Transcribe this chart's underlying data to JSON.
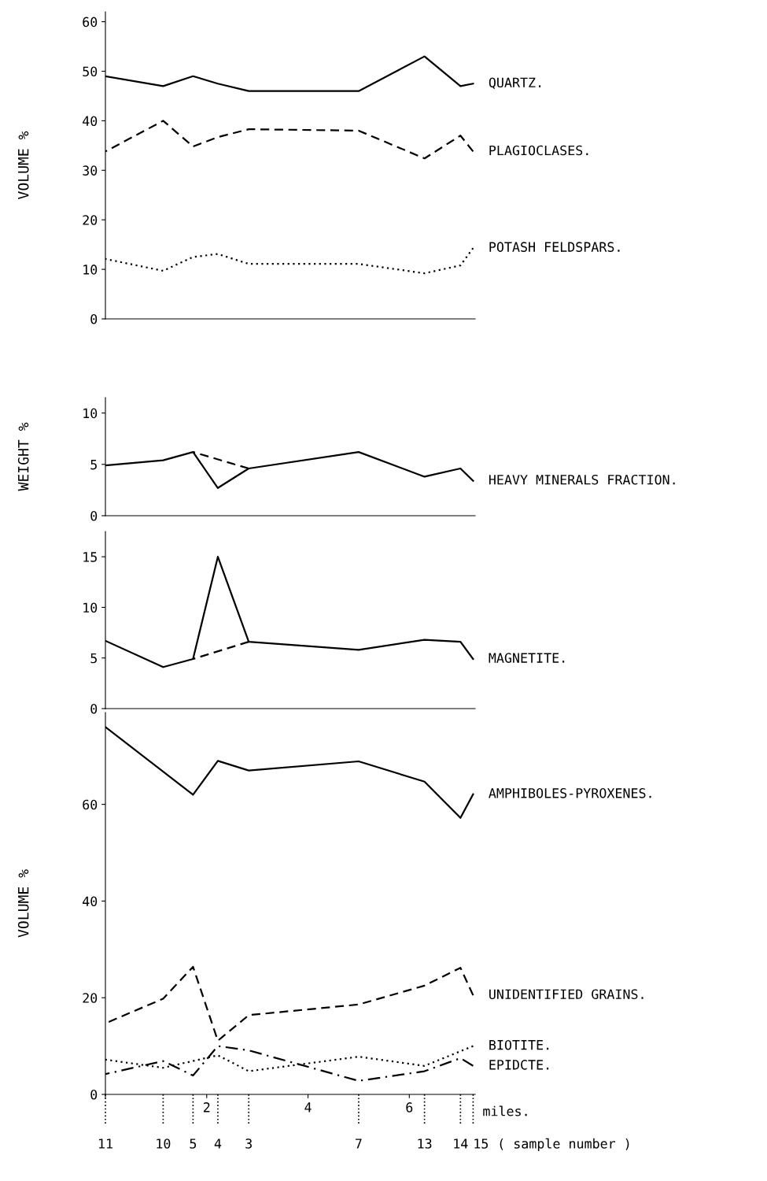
{
  "chart_data": [
    {
      "type": "line",
      "ylabel": "VOLUME %",
      "x": [
        0,
        1.14,
        1.73,
        2.22,
        2.83,
        5.0,
        6.3,
        7.01,
        7.26
      ],
      "xlim": [
        0,
        7.3
      ],
      "ylim": [
        0,
        62
      ],
      "yticks": [
        0,
        10,
        20,
        30,
        40,
        50,
        60
      ],
      "tick_labels": "y",
      "grid": false,
      "legend": false,
      "series": [
        {
          "name": "QUARTZ.",
          "color": "#000000",
          "line_style": "solid",
          "values": [
            49,
            47,
            49,
            47.5,
            46,
            46,
            53,
            47,
            47.5
          ]
        },
        {
          "name": "PLAGIOCLASES.",
          "color": "#000000",
          "line_style": "dashed",
          "values": [
            33.8,
            40,
            34.8,
            36.7,
            38.3,
            38,
            32.4,
            37,
            33.8
          ]
        },
        {
          "name": "POTASH FELDSPARS.",
          "color": "#000000",
          "line_style": "dotted",
          "values": [
            12.1,
            9.7,
            12.5,
            13.1,
            11.1,
            11.1,
            9.2,
            10.8,
            14.3
          ]
        }
      ]
    },
    {
      "type": "line",
      "ylabel": "WEIGHT %",
      "x": [
        0,
        1.14,
        1.73,
        2.22,
        2.83,
        5.0,
        6.3,
        7.01,
        7.26
      ],
      "xlim": [
        0,
        7.3
      ],
      "ylim": [
        0,
        11.5
      ],
      "yticks": [
        0,
        5,
        10
      ],
      "tick_labels": "y",
      "grid": false,
      "legend": false,
      "series": [
        {
          "name": "HEAVY MINERALS FRACTION.",
          "color": "#000000",
          "line_style": "solid",
          "values": [
            4.9,
            5.4,
            6.2,
            2.7,
            4.6,
            6.2,
            3.8,
            4.6,
            3.4
          ]
        },
        {
          "color": "#000000",
          "line_style": "dashed",
          "x": [
            1.73,
            2.83
          ],
          "values": [
            6.2,
            4.6
          ]
        }
      ]
    },
    {
      "type": "line",
      "x": [
        0,
        1.14,
        1.73,
        2.22,
        2.83,
        5.0,
        6.3,
        7.01,
        7.26
      ],
      "xlim": [
        0,
        7.3
      ],
      "ylim": [
        0,
        17.5
      ],
      "yticks": [
        0,
        5,
        10,
        15
      ],
      "tick_labels": "y",
      "grid": false,
      "legend": false,
      "series": [
        {
          "name": "MAGNETITE.",
          "color": "#000000",
          "line_style": "solid",
          "values": [
            6.7,
            4.1,
            4.9,
            15.0,
            6.6,
            5.8,
            6.8,
            6.6,
            4.9
          ]
        },
        {
          "color": "#000000",
          "line_style": "dashed",
          "x": [
            1.73,
            2.83
          ],
          "values": [
            4.9,
            6.6
          ]
        }
      ]
    },
    {
      "type": "line",
      "ylabel": "VOLUME %",
      "xlabel": "miles.",
      "x": [
        0,
        1.14,
        1.73,
        2.22,
        2.83,
        5.0,
        6.3,
        7.01,
        7.26
      ],
      "xlim": [
        0,
        7.3
      ],
      "ylim": [
        0,
        79
      ],
      "yticks": [
        0,
        20,
        40,
        60
      ],
      "xticks": [
        {
          "value": 0,
          "label": null
        },
        2,
        4,
        6
      ],
      "annotations": [
        "11",
        "10",
        "5",
        "4",
        "3",
        "7",
        "13",
        "14",
        "15",
        "( sample number )"
      ],
      "grid": false,
      "legend": false,
      "series": [
        {
          "name": "AMPHIBOLES-PYROXENES.",
          "color": "#000000",
          "line_style": "solid",
          "x": [
            0,
            1.73,
            2.22,
            2.83,
            5.0,
            6.3,
            7.01,
            7.26
          ],
          "values": [
            76,
            62,
            69,
            67,
            68.9,
            64.7,
            57.2,
            62.1
          ]
        },
        {
          "name": "UNIDENTIFIED GRAINS.",
          "color": "#000000",
          "line_style": "dashed",
          "values": [
            14.7,
            19.8,
            26.4,
            11.1,
            16.4,
            18.6,
            22.5,
            26.2,
            20.5
          ]
        },
        {
          "name": "BIOTITE.",
          "color": "#000000",
          "line_style": "dotted",
          "x": [
            0,
            1.14,
            2.22,
            2.83,
            5.0,
            6.3,
            7.26
          ],
          "values": [
            7.2,
            5.5,
            8.1,
            4.8,
            7.8,
            5.9,
            10
          ]
        },
        {
          "name": "EPIDCTE.",
          "color": "#000000",
          "line_style": "dashdot",
          "values": [
            4.2,
            6.9,
            3.9,
            10,
            9.1,
            2.8,
            4.8,
            7.5,
            5.9
          ]
        }
      ]
    }
  ]
}
